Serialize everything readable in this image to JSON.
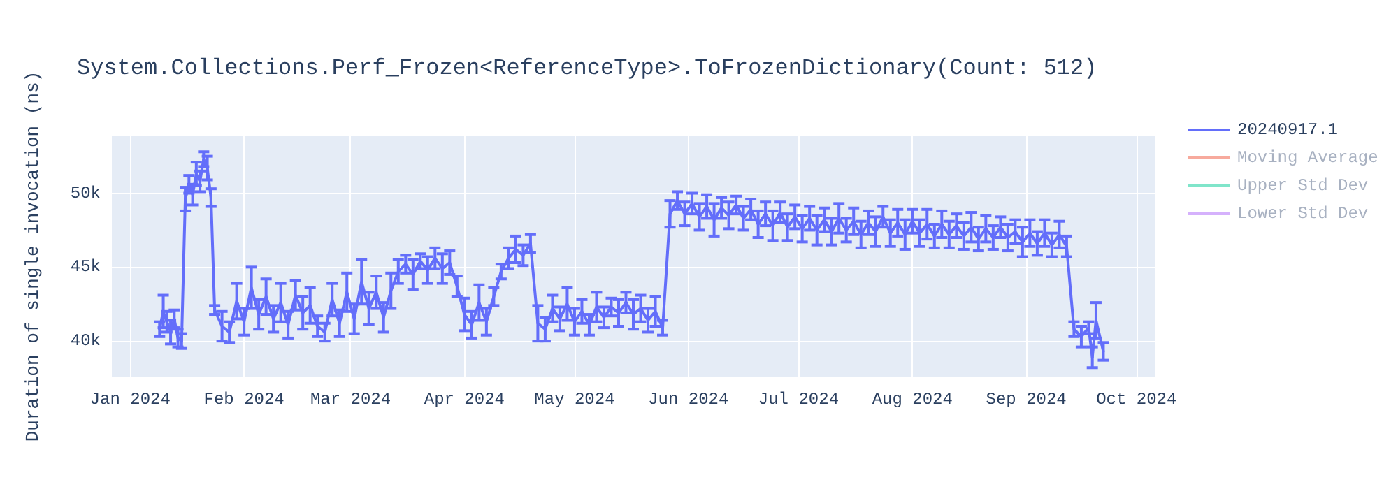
{
  "chart_data": {
    "type": "line",
    "title": "System.Collections.Perf_Frozen<ReferenceType>.ToFrozenDictionary(Count: 512)",
    "ylabel": "Duration of single invocation (ns)",
    "xlim": [
      "2023-12-27",
      "2024-10-06"
    ],
    "xticks": [
      {
        "value": "2024-01-01",
        "label": "Jan 2024"
      },
      {
        "value": "2024-02-01",
        "label": "Feb 2024"
      },
      {
        "value": "2024-03-01",
        "label": "Mar 2024"
      },
      {
        "value": "2024-04-01",
        "label": "Apr 2024"
      },
      {
        "value": "2024-05-01",
        "label": "May 2024"
      },
      {
        "value": "2024-06-01",
        "label": "Jun 2024"
      },
      {
        "value": "2024-07-01",
        "label": "Jul 2024"
      },
      {
        "value": "2024-08-01",
        "label": "Aug 2024"
      },
      {
        "value": "2024-09-01",
        "label": "Sep 2024"
      },
      {
        "value": "2024-10-01",
        "label": "Oct 2024"
      }
    ],
    "ylim": [
      37550,
      53900
    ],
    "yticks": [
      {
        "value": 40000,
        "label": "40k"
      },
      {
        "value": 45000,
        "label": "45k"
      },
      {
        "value": 50000,
        "label": "50k"
      }
    ],
    "grid": true,
    "legend": "top right",
    "marker": "none",
    "x": [
      "2024-01-09",
      "2024-01-10",
      "2024-01-11",
      "2024-01-12",
      "2024-01-13",
      "2024-01-14",
      "2024-01-15",
      "2024-01-16",
      "2024-01-17",
      "2024-01-18",
      "2024-01-19",
      "2024-01-20",
      "2024-01-21",
      "2024-01-22",
      "2024-01-23",
      "2024-01-24",
      "2024-01-26",
      "2024-01-28",
      "2024-01-30",
      "2024-02-01",
      "2024-02-03",
      "2024-02-05",
      "2024-02-07",
      "2024-02-09",
      "2024-02-11",
      "2024-02-13",
      "2024-02-15",
      "2024-02-17",
      "2024-02-19",
      "2024-02-21",
      "2024-02-23",
      "2024-02-25",
      "2024-02-27",
      "2024-02-29",
      "2024-03-02",
      "2024-03-04",
      "2024-03-06",
      "2024-03-08",
      "2024-03-10",
      "2024-03-12",
      "2024-03-14",
      "2024-03-16",
      "2024-03-18",
      "2024-03-20",
      "2024-03-22",
      "2024-03-24",
      "2024-03-26",
      "2024-03-28",
      "2024-03-30",
      "2024-04-01",
      "2024-04-03",
      "2024-04-05",
      "2024-04-07",
      "2024-04-09",
      "2024-04-11",
      "2024-04-13",
      "2024-04-15",
      "2024-04-17",
      "2024-04-19",
      "2024-04-21",
      "2024-04-23",
      "2024-04-25",
      "2024-04-27",
      "2024-04-29",
      "2024-05-01",
      "2024-05-03",
      "2024-05-05",
      "2024-05-07",
      "2024-05-09",
      "2024-05-11",
      "2024-05-13",
      "2024-05-15",
      "2024-05-17",
      "2024-05-19",
      "2024-05-21",
      "2024-05-23",
      "2024-05-25",
      "2024-05-27",
      "2024-05-29",
      "2024-05-31",
      "2024-06-02",
      "2024-06-04",
      "2024-06-06",
      "2024-06-08",
      "2024-06-10",
      "2024-06-12",
      "2024-06-14",
      "2024-06-16",
      "2024-06-18",
      "2024-06-20",
      "2024-06-22",
      "2024-06-24",
      "2024-06-26",
      "2024-06-28",
      "2024-06-30",
      "2024-07-02",
      "2024-07-04",
      "2024-07-06",
      "2024-07-08",
      "2024-07-10",
      "2024-07-12",
      "2024-07-14",
      "2024-07-16",
      "2024-07-18",
      "2024-07-20",
      "2024-07-22",
      "2024-07-24",
      "2024-07-26",
      "2024-07-28",
      "2024-07-30",
      "2024-08-01",
      "2024-08-03",
      "2024-08-05",
      "2024-08-07",
      "2024-08-09",
      "2024-08-11",
      "2024-08-13",
      "2024-08-15",
      "2024-08-17",
      "2024-08-19",
      "2024-08-21",
      "2024-08-23",
      "2024-08-25",
      "2024-08-27",
      "2024-08-29",
      "2024-08-31",
      "2024-09-02",
      "2024-09-04",
      "2024-09-06",
      "2024-09-08",
      "2024-09-10",
      "2024-09-12",
      "2024-09-14",
      "2024-09-16",
      "2024-09-18",
      "2024-09-19",
      "2024-09-20",
      "2024-09-22"
    ],
    "series": [
      {
        "name": "20240917.1",
        "color": "#636efa",
        "values": [
          40800,
          42000,
          41300,
          40600,
          41500,
          40200,
          40000,
          49600,
          50600,
          49900,
          51300,
          50800,
          52300,
          51700,
          49700,
          42100,
          41000,
          40600,
          42700,
          41300,
          43600,
          41800,
          43000,
          41500,
          42600,
          41100,
          43100,
          41900,
          42400,
          41000,
          40600,
          42800,
          41200,
          43300,
          41500,
          44000,
          42200,
          43300,
          41600,
          43400,
          44700,
          45200,
          44500,
          45400,
          44800,
          45600,
          44900,
          45300,
          43700,
          41800,
          41100,
          42600,
          41300,
          43000,
          44700,
          45600,
          46200,
          45800,
          46600,
          41200,
          40800,
          42200,
          41500,
          42500,
          41300,
          42000,
          41100,
          42300,
          41600,
          42300,
          41900,
          42600,
          41800,
          42200,
          41400,
          42000,
          40900,
          48600,
          49500,
          48600,
          49300,
          48400,
          49100,
          48200,
          49000,
          48500,
          49200,
          48300,
          48900,
          47900,
          48600,
          47800,
          48700,
          47700,
          48400,
          47600,
          48300,
          47500,
          48200,
          47400,
          48300,
          47500,
          48100,
          47200,
          48000,
          47400,
          48400,
          47300,
          48000,
          47200,
          48100,
          47300,
          47900,
          47100,
          47900,
          47200,
          47800,
          47100,
          47700,
          46900,
          47600,
          47000,
          47700,
          47000,
          47400,
          46700,
          47300,
          46600,
          47300,
          46500,
          47200,
          46400,
          40800,
          40300,
          40900,
          38900,
          41400,
          39300
        ],
        "errors": [
          500,
          1100,
          700,
          800,
          600,
          600,
          500,
          800,
          600,
          700,
          800,
          700,
          500,
          800,
          600,
          300,
          1000,
          700,
          1200,
          900,
          1400,
          1000,
          1200,
          900,
          1300,
          900,
          1000,
          1100,
          1200,
          700,
          600,
          1100,
          900,
          1300,
          1000,
          1500,
          1100,
          1100,
          1000,
          1200,
          800,
          600,
          1000,
          500,
          900,
          700,
          1000,
          800,
          700,
          1100,
          900,
          1200,
          900,
          600,
          500,
          700,
          900,
          700,
          600,
          1200,
          800,
          900,
          800,
          1100,
          900,
          800,
          700,
          1000,
          700,
          600,
          900,
          700,
          1000,
          900,
          800,
          1000,
          500,
          900,
          600,
          800,
          700,
          900,
          800,
          1100,
          700,
          900,
          600,
          800,
          700,
          900,
          800,
          1000,
          700,
          900,
          800,
          900,
          800,
          1000,
          800,
          900,
          1000,
          800,
          900,
          900,
          800,
          1000,
          700,
          900,
          900,
          1000,
          800,
          900,
          1000,
          800,
          900,
          900,
          800,
          900,
          1000,
          800,
          900,
          800,
          700,
          900,
          800,
          1000,
          900,
          800,
          900,
          800,
          900,
          700,
          500,
          700,
          400,
          700,
          1200,
          600
        ]
      },
      {
        "name": "Moving Average",
        "color": "#f7aa9d",
        "values": [
          null,
          null,
          null,
          null,
          null,
          null,
          null,
          null,
          null,
          null,
          null,
          null,
          null,
          null,
          null,
          null,
          null,
          null,
          null,
          null,
          null,
          null,
          null,
          null,
          null,
          null,
          null,
          null,
          null,
          null,
          null,
          null,
          null,
          null,
          null,
          null,
          null,
          null,
          null,
          null,
          null,
          null,
          null,
          null,
          null,
          null,
          null,
          null,
          null,
          null,
          null,
          null,
          null,
          null,
          null,
          null,
          null,
          null,
          null,
          null,
          null,
          null,
          null,
          null,
          null,
          null,
          null,
          null,
          null,
          null,
          null,
          null,
          null,
          null,
          null,
          null,
          null,
          null,
          null,
          null,
          null,
          null,
          null,
          null,
          null,
          null,
          null,
          null,
          null,
          null,
          null,
          null,
          null,
          null,
          null,
          null,
          null,
          null,
          null,
          null,
          null,
          null,
          null,
          null,
          null,
          null,
          null,
          null,
          null,
          null,
          null,
          null,
          null,
          null,
          null,
          null,
          null,
          null,
          null,
          null,
          null,
          null,
          null,
          null,
          null,
          null,
          null,
          null,
          null,
          null,
          null,
          null,
          null,
          null,
          null,
          null,
          null,
          null
        ]
      },
      {
        "name": "Upper Std Dev",
        "color": "#80e5ca",
        "values": [
          null,
          null,
          null,
          null,
          null,
          null,
          null,
          null,
          null,
          null,
          null,
          null,
          null,
          null,
          null,
          null,
          null,
          null,
          null,
          null,
          null,
          null,
          null,
          null,
          null,
          null,
          null,
          null,
          null,
          null,
          null,
          null,
          null,
          null,
          null,
          null,
          null,
          null,
          null,
          null,
          null,
          null,
          null,
          null,
          null,
          null,
          null,
          null,
          null,
          null,
          null,
          null,
          null,
          null,
          null,
          null,
          null,
          null,
          null,
          null,
          null,
          null,
          null,
          null,
          null,
          null,
          null,
          null,
          null,
          null,
          null,
          null,
          null,
          null,
          null,
          null,
          null,
          null,
          null,
          null,
          null,
          null,
          null,
          null,
          null,
          null,
          null,
          null,
          null,
          null,
          null,
          null,
          null,
          null,
          null,
          null,
          null,
          null,
          null,
          null,
          null,
          null,
          null,
          null,
          null,
          null,
          null,
          null,
          null,
          null,
          null,
          null,
          null,
          null,
          null,
          null,
          null,
          null,
          null,
          null,
          null,
          null,
          null,
          null,
          null,
          null,
          null,
          null,
          null,
          null,
          null,
          null,
          null,
          null,
          null,
          null,
          null,
          null
        ]
      },
      {
        "name": "Lower Std Dev",
        "color": "#d5b1fc",
        "values": [
          null,
          null,
          null,
          null,
          null,
          null,
          null,
          null,
          null,
          null,
          null,
          null,
          null,
          null,
          null,
          null,
          null,
          null,
          null,
          null,
          null,
          null,
          null,
          null,
          null,
          null,
          null,
          null,
          null,
          null,
          null,
          null,
          null,
          null,
          null,
          null,
          null,
          null,
          null,
          null,
          null,
          null,
          null,
          null,
          null,
          null,
          null,
          null,
          null,
          null,
          null,
          null,
          null,
          null,
          null,
          null,
          null,
          null,
          null,
          null,
          null,
          null,
          null,
          null,
          null,
          null,
          null,
          null,
          null,
          null,
          null,
          null,
          null,
          null,
          null,
          null,
          null,
          null,
          null,
          null,
          null,
          null,
          null,
          null,
          null,
          null,
          null,
          null,
          null,
          null,
          null,
          null,
          null,
          null,
          null,
          null,
          null,
          null,
          null,
          null,
          null,
          null,
          null,
          null,
          null,
          null,
          null,
          null,
          null,
          null,
          null,
          null,
          null,
          null,
          null,
          null,
          null,
          null,
          null,
          null,
          null,
          null,
          null,
          null,
          null,
          null,
          null,
          null,
          null,
          null,
          null,
          null,
          null,
          null,
          null,
          null,
          null,
          null
        ]
      }
    ]
  }
}
